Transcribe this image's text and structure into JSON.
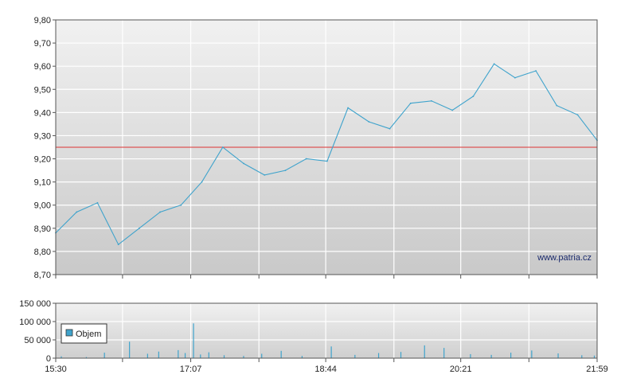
{
  "chart_data": [
    {
      "type": "line",
      "watermark": "www.patria.cz",
      "reference_line": {
        "value": 9.25,
        "color": "#dd3333"
      },
      "line_color": "#3fa3cc",
      "ylim": [
        8.7,
        9.8
      ],
      "y_ticks": [
        "9,80",
        "9,70",
        "9,60",
        "9,50",
        "9,40",
        "9,30",
        "9,20",
        "9,10",
        "9,00",
        "8,90",
        "8,80",
        "8,70"
      ],
      "y_tick_values": [
        9.8,
        9.7,
        9.6,
        9.5,
        9.4,
        9.3,
        9.2,
        9.1,
        9.0,
        8.9,
        8.8,
        8.7
      ],
      "x_tick_times": [
        "15:30",
        "16:18",
        "17:07",
        "17:56",
        "18:44",
        "19:33",
        "20:21",
        "21:10",
        "21:59"
      ],
      "x": [
        "15:30",
        "15:45",
        "16:00",
        "16:15",
        "16:30",
        "16:45",
        "17:00",
        "17:15",
        "17:30",
        "17:45",
        "18:00",
        "18:15",
        "18:30",
        "18:45",
        "19:00",
        "19:15",
        "19:30",
        "19:45",
        "20:00",
        "20:15",
        "20:30",
        "20:45",
        "21:00",
        "21:15",
        "21:30",
        "21:45",
        "21:59"
      ],
      "values": [
        8.88,
        8.97,
        9.01,
        8.83,
        8.9,
        8.97,
        9.0,
        9.1,
        9.25,
        9.18,
        9.13,
        9.15,
        9.2,
        9.19,
        9.42,
        9.36,
        9.33,
        9.44,
        9.45,
        9.41,
        9.47,
        9.61,
        9.55,
        9.58,
        9.43,
        9.39,
        9.28
      ]
    },
    {
      "type": "bar",
      "legend": [
        {
          "name": "Objem",
          "color": "#3fa3cc"
        }
      ],
      "ylim": [
        0,
        150000
      ],
      "y_ticks": [
        "150 000",
        "100 000",
        "50 000",
        "0"
      ],
      "y_tick_values": [
        150000,
        100000,
        50000,
        0
      ],
      "x_tick_labels": [
        "15:30",
        "17:07",
        "18:44",
        "20:21",
        "21:59"
      ],
      "x_tick_times": [
        "15:30",
        "16:18",
        "17:07",
        "17:56",
        "18:44",
        "19:33",
        "20:21",
        "21:10",
        "21:59"
      ],
      "x": [
        "15:34",
        "15:52",
        "16:05",
        "16:23",
        "16:36",
        "16:44",
        "16:58",
        "17:03",
        "17:09",
        "17:14",
        "17:20",
        "17:31",
        "17:45",
        "17:58",
        "18:12",
        "18:27",
        "18:48",
        "19:05",
        "19:22",
        "19:38",
        "19:55",
        "20:09",
        "20:28",
        "20:43",
        "20:57",
        "21:12",
        "21:31",
        "21:48",
        "21:57"
      ],
      "values": [
        5000,
        3000,
        15000,
        45000,
        12000,
        18000,
        22000,
        14000,
        95000,
        10000,
        16000,
        8000,
        6000,
        12000,
        20000,
        6000,
        32000,
        9000,
        14000,
        17000,
        35000,
        28000,
        11000,
        9000,
        15000,
        21000,
        13000,
        8000,
        7000
      ]
    }
  ]
}
